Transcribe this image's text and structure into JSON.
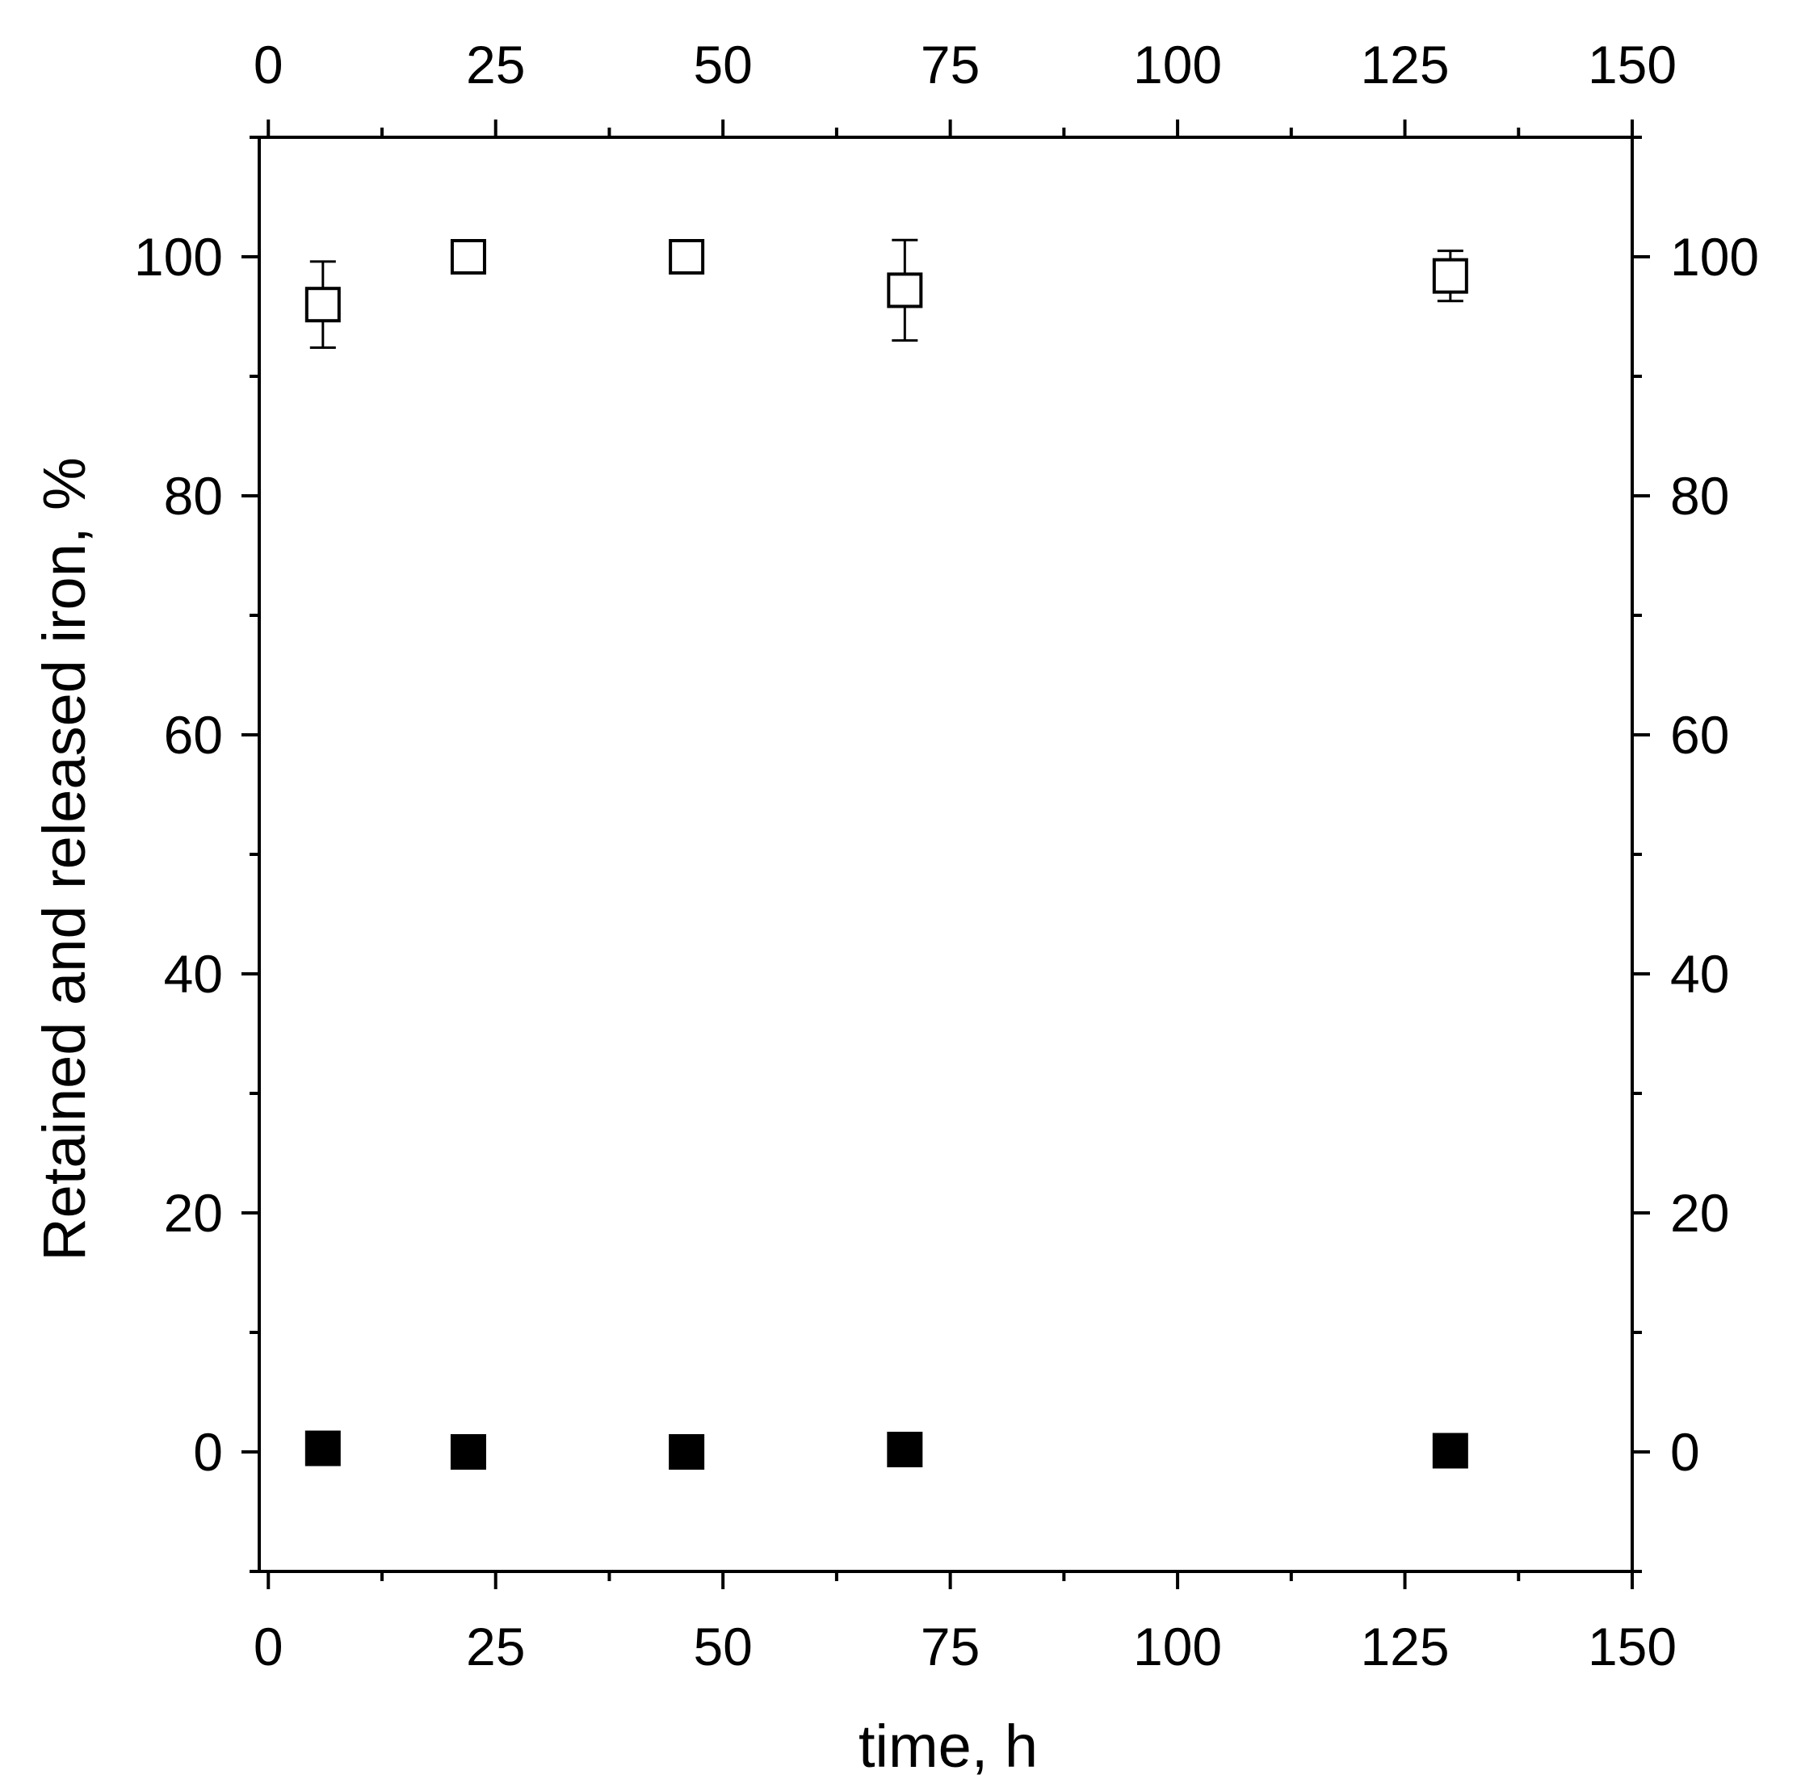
{
  "chart_data": {
    "type": "scatter",
    "title": "",
    "xlabel": "time, h",
    "ylabel": "Retained and released iron, %",
    "xlim": [
      -1,
      150
    ],
    "ylim": [
      -10,
      110
    ],
    "x_ticks": [
      0,
      25,
      50,
      75,
      100,
      125,
      150
    ],
    "x_minor_ticks": [
      12.5,
      37.5,
      62.5,
      87.5,
      112.5,
      137.5
    ],
    "y_ticks": [
      0,
      20,
      40,
      60,
      80,
      100
    ],
    "y_minor_ticks": [
      -10,
      10,
      30,
      50,
      70,
      90,
      110
    ],
    "grid": false,
    "legend": "none",
    "series": [
      {
        "marker": "open-square",
        "color": "#000000",
        "x": [
          6,
          22,
          46,
          70,
          130
        ],
        "y": [
          96,
          100,
          100,
          97.2,
          98.4
        ],
        "error": [
          3.6,
          0,
          0,
          4.2,
          2.1
        ]
      },
      {
        "marker": "filled-square",
        "color": "#000000",
        "x": [
          6,
          22,
          46,
          70,
          130
        ],
        "y": [
          0.3,
          0,
          0,
          0.2,
          0.1
        ],
        "error": [
          0,
          0,
          0,
          0,
          0
        ]
      }
    ]
  }
}
